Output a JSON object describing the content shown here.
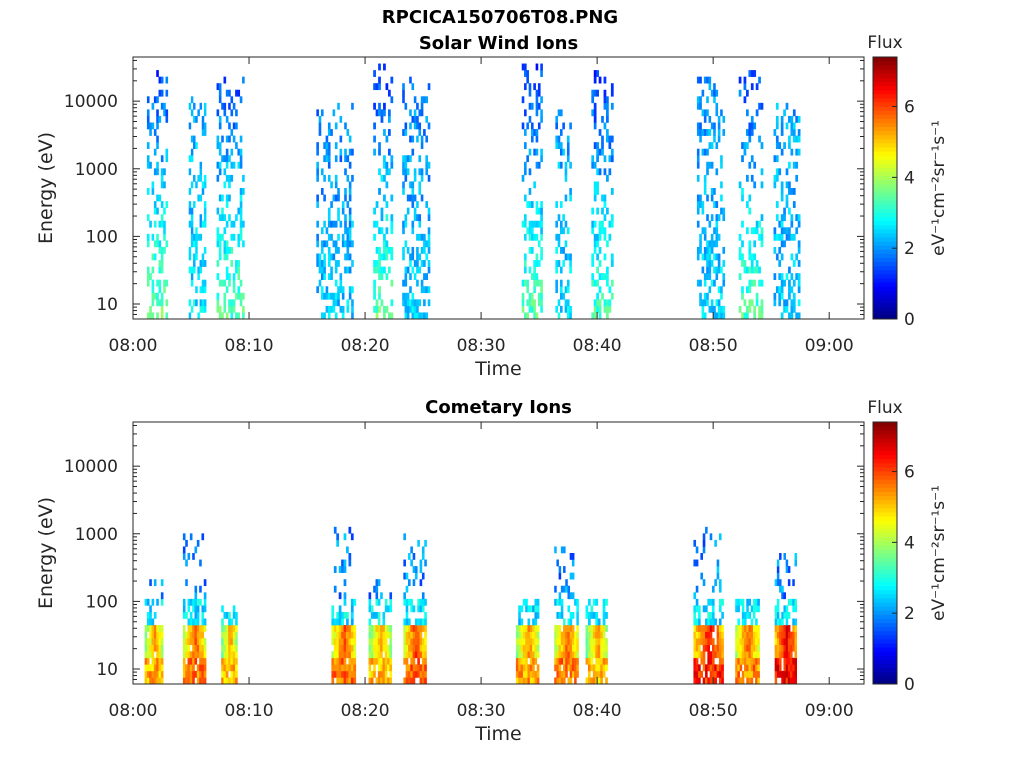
{
  "figure_title": "RPCICA150706T08.PNG",
  "chart_data": [
    {
      "type": "heatmap",
      "title": "Solar Wind Ions",
      "xlabel": "Time",
      "ylabel": "Energy (eV)",
      "x_ticks": [
        "08:00",
        "08:10",
        "08:20",
        "08:30",
        "08:40",
        "08:50",
        "09:00"
      ],
      "x_range_minutes": [
        0,
        63
      ],
      "y_scale": "log",
      "y_ticks": [
        {
          "value": 10,
          "label": "10"
        },
        {
          "value": 100,
          "label": "100"
        },
        {
          "value": 1000,
          "label": "1000"
        },
        {
          "value": 10000,
          "label": "10000"
        }
      ],
      "y_range": [
        6,
        45000
      ],
      "colorbar": {
        "title": "Flux",
        "label": "eV⁻¹cm⁻²sr⁻¹s⁻¹",
        "ticks": [
          "0",
          "2",
          "4",
          "6"
        ],
        "range": [
          0,
          7.4
        ],
        "colormap": "jet"
      },
      "bursts": [
        {
          "start": 1.2,
          "end": 3.0,
          "emax": 28000,
          "lowflux": 3.6,
          "highflux": 1.4
        },
        {
          "start": 4.8,
          "end": 6.3,
          "emax": 13000,
          "lowflux": 2.6,
          "highflux": 2.2
        },
        {
          "start": 7.2,
          "end": 9.6,
          "emax": 25000,
          "lowflux": 3.4,
          "highflux": 1.5
        },
        {
          "start": 15.8,
          "end": 19.0,
          "emax": 9000,
          "lowflux": 2.4,
          "highflux": 1.8
        },
        {
          "start": 20.7,
          "end": 22.4,
          "emax": 35000,
          "lowflux": 3.5,
          "highflux": 1.3
        },
        {
          "start": 23.2,
          "end": 25.6,
          "emax": 25000,
          "lowflux": 2.5,
          "highflux": 1.8
        },
        {
          "start": 33.5,
          "end": 35.3,
          "emax": 33000,
          "lowflux": 3.4,
          "highflux": 1.4
        },
        {
          "start": 36.4,
          "end": 37.8,
          "emax": 7000,
          "lowflux": 2.6,
          "highflux": 2.0
        },
        {
          "start": 39.5,
          "end": 41.4,
          "emax": 30000,
          "lowflux": 3.3,
          "highflux": 1.3
        },
        {
          "start": 48.6,
          "end": 51.0,
          "emax": 25000,
          "lowflux": 2.5,
          "highflux": 1.9
        },
        {
          "start": 52.2,
          "end": 54.3,
          "emax": 30000,
          "lowflux": 3.4,
          "highflux": 1.4
        },
        {
          "start": 55.2,
          "end": 57.5,
          "emax": 12000,
          "lowflux": 2.4,
          "highflux": 2.1
        }
      ]
    },
    {
      "type": "heatmap",
      "title": "Cometary Ions",
      "xlabel": "Time",
      "ylabel": "Energy (eV)",
      "x_ticks": [
        "08:00",
        "08:10",
        "08:20",
        "08:30",
        "08:40",
        "08:50",
        "09:00"
      ],
      "x_range_minutes": [
        0,
        63
      ],
      "y_scale": "log",
      "y_ticks": [
        {
          "value": 10,
          "label": "10"
        },
        {
          "value": 100,
          "label": "100"
        },
        {
          "value": 1000,
          "label": "1000"
        },
        {
          "value": 10000,
          "label": "10000"
        }
      ],
      "y_range": [
        6,
        45000
      ],
      "colorbar": {
        "title": "Flux",
        "label": "eV⁻¹cm⁻²sr⁻¹s⁻¹",
        "ticks": [
          "0",
          "2",
          "4",
          "6"
        ],
        "range": [
          0,
          7.4
        ],
        "colormap": "jet"
      },
      "bursts": [
        {
          "start": 1.0,
          "end": 2.6,
          "emax": 200,
          "peak": 5.4
        },
        {
          "start": 4.3,
          "end": 6.3,
          "emax": 1000,
          "peak": 5.8
        },
        {
          "start": 7.6,
          "end": 9.0,
          "emax": 80,
          "peak": 5.3
        },
        {
          "start": 17.1,
          "end": 19.2,
          "emax": 1300,
          "peak": 5.9
        },
        {
          "start": 20.3,
          "end": 22.3,
          "emax": 200,
          "peak": 5.3
        },
        {
          "start": 23.3,
          "end": 25.3,
          "emax": 1200,
          "peak": 6.0
        },
        {
          "start": 33.0,
          "end": 35.0,
          "emax": 120,
          "peak": 5.5
        },
        {
          "start": 36.3,
          "end": 38.4,
          "emax": 800,
          "peak": 5.8
        },
        {
          "start": 39.0,
          "end": 40.9,
          "emax": 120,
          "peak": 5.3
        },
        {
          "start": 48.3,
          "end": 50.9,
          "emax": 1200,
          "peak": 6.4
        },
        {
          "start": 51.9,
          "end": 54.0,
          "emax": 120,
          "peak": 5.7
        },
        {
          "start": 55.3,
          "end": 57.2,
          "emax": 600,
          "peak": 6.6
        }
      ]
    }
  ]
}
